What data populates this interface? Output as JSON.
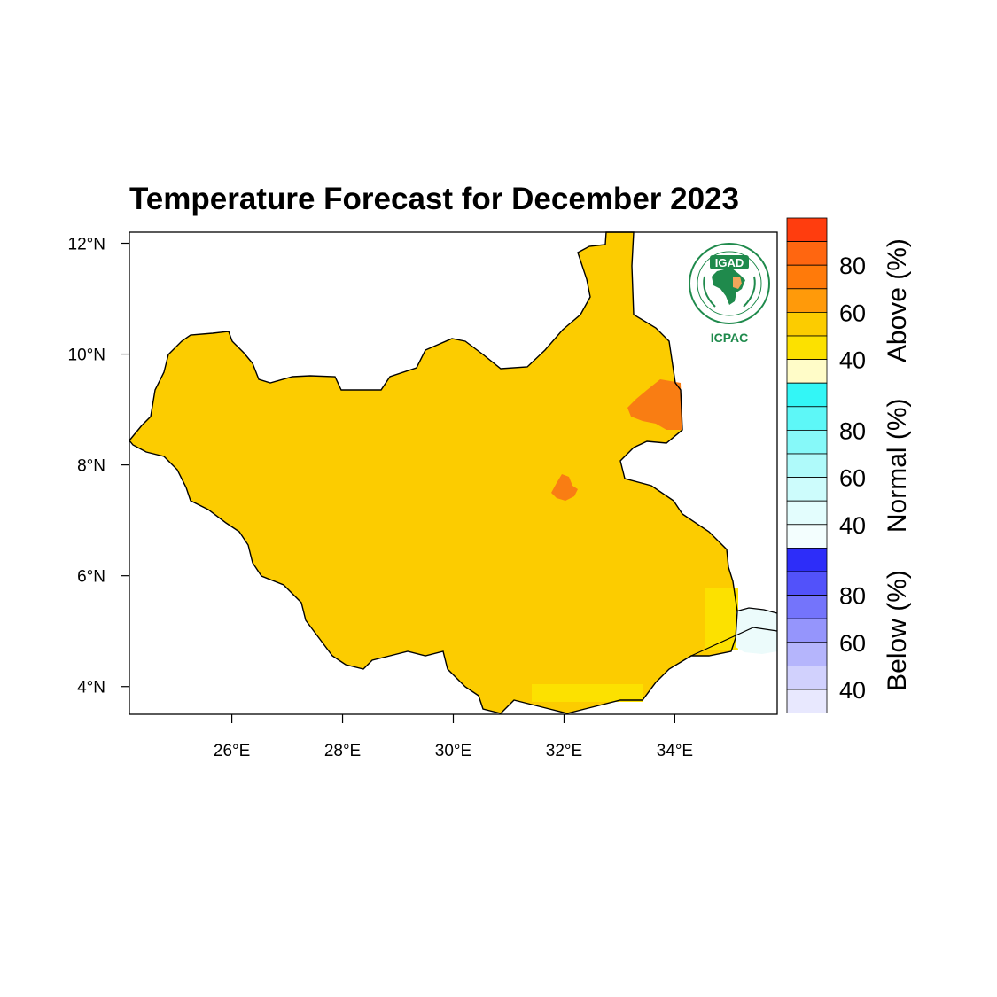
{
  "title": "Temperature Forecast for December 2023",
  "logo": {
    "name": "IGAD",
    "org": "ICPAC"
  },
  "map": {
    "region": "South Sudan",
    "lon_range": [
      24.15,
      35.85
    ],
    "lat_range": [
      3.5,
      12.2
    ],
    "x_ticks": [
      "26°E",
      "28°E",
      "30°E",
      "32°E",
      "34°E"
    ],
    "x_tick_values": [
      26,
      28,
      30,
      32,
      34
    ],
    "y_ticks": [
      "12°N",
      "10°N",
      "8°N",
      "6°N",
      "4°N"
    ],
    "y_tick_values": [
      12,
      10,
      8,
      6,
      4
    ],
    "dominant_category": "Above 40-50%",
    "colors": {
      "above_40_50": "#FCCC00",
      "above_50_60": "#FCE100",
      "above_70_80": "#F97D13",
      "normal_low": "#ECFBFB"
    }
  },
  "legend": {
    "sections": [
      {
        "name": "Above (%)",
        "ticks": [
          "80",
          "60",
          "40"
        ],
        "colors": [
          "#FF3D0E",
          "#FF6610",
          "#FF7A0A",
          "#FF9A0A",
          "#FCCC00",
          "#FCE100",
          "#FFFCC8"
        ]
      },
      {
        "name": "Normal (%)",
        "ticks": [
          "80",
          "60",
          "40"
        ],
        "colors": [
          "#33F6F6",
          "#5DF7F7",
          "#86F9F9",
          "#AFFAFA",
          "#CDFCFC",
          "#E3FDFD",
          "#F3FEFE"
        ]
      },
      {
        "name": "Below (%)",
        "ticks": [
          "80",
          "60",
          "40"
        ],
        "colors": [
          "#2D2DF9",
          "#5252FA",
          "#7474FB",
          "#9595FC",
          "#B5B5FC",
          "#D1D1FD",
          "#E8E8FE"
        ]
      }
    ]
  }
}
